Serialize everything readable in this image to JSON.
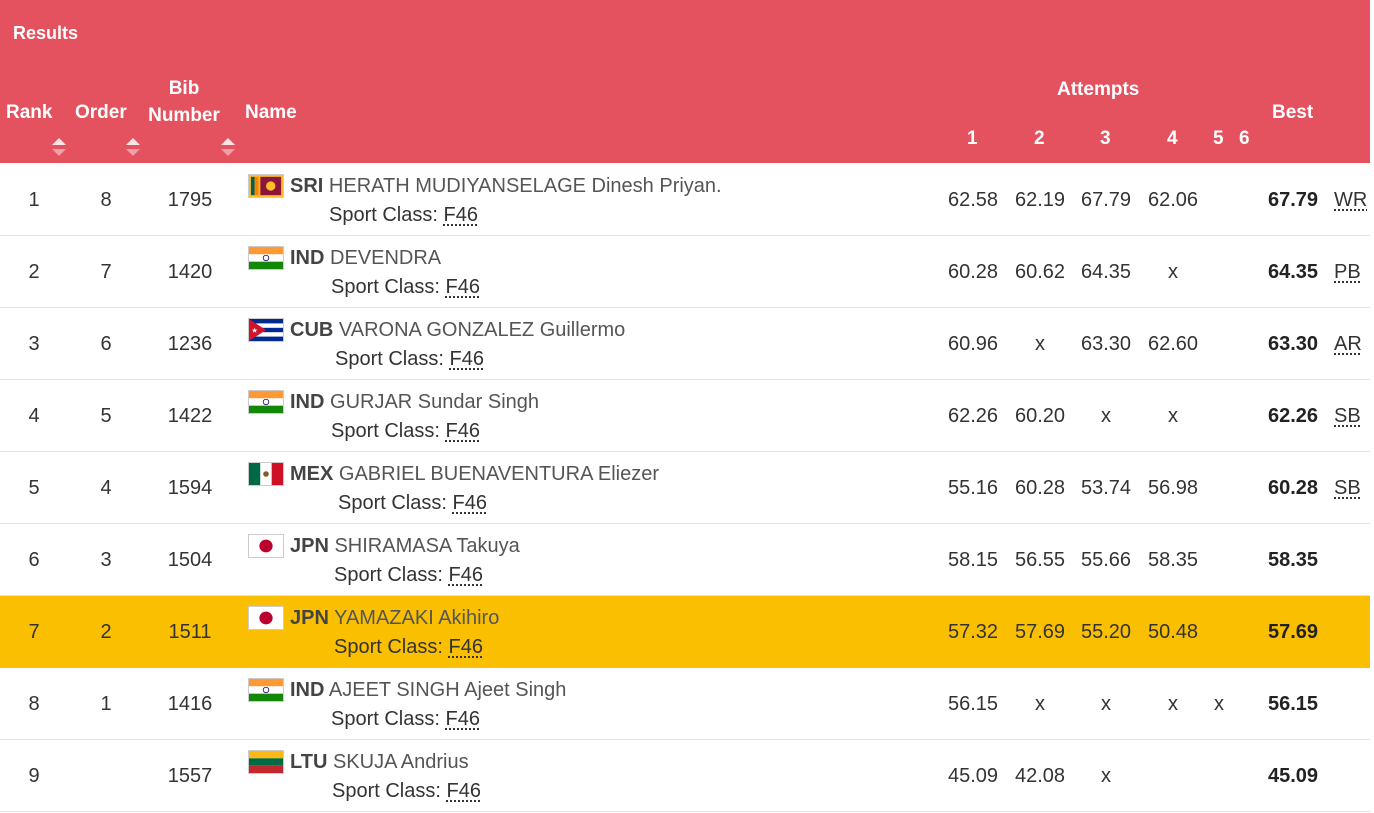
{
  "header": {
    "title": "Results",
    "rank": "Rank",
    "order": "Order",
    "bib": "Bib Number",
    "name": "Name",
    "attempts": "Attempts",
    "attempt_numbers": [
      "1",
      "2",
      "3",
      "4",
      "5",
      "6"
    ],
    "best": "Best"
  },
  "colors": {
    "header_bg": "#e5525f",
    "highlight": "#f9bf00"
  },
  "sport_class_label": "Sport Class:",
  "rows": [
    {
      "rank": "1",
      "order": "8",
      "bib": "1795",
      "flag": "sri-lanka-flag",
      "noc": "SRI",
      "name": "HERATH MUDIYANSELAGE Dinesh Priyan.",
      "sport_class": "F46",
      "attempts": [
        "62.58",
        "62.19",
        "67.79",
        "62.06",
        ""
      ],
      "best": "67.79",
      "record": "WR"
    },
    {
      "rank": "2",
      "order": "7",
      "bib": "1420",
      "flag": "india-flag",
      "noc": "IND",
      "name": "DEVENDRA",
      "sport_class": "F46",
      "attempts": [
        "60.28",
        "60.62",
        "64.35",
        "x",
        ""
      ],
      "best": "64.35",
      "record": "PB"
    },
    {
      "rank": "3",
      "order": "6",
      "bib": "1236",
      "flag": "cuba-flag",
      "noc": "CUB",
      "name": "VARONA GONZALEZ Guillermo",
      "sport_class": "F46",
      "attempts": [
        "60.96",
        "x",
        "63.30",
        "62.60",
        ""
      ],
      "best": "63.30",
      "record": "AR"
    },
    {
      "rank": "4",
      "order": "5",
      "bib": "1422",
      "flag": "india-flag",
      "noc": "IND",
      "name": "GURJAR Sundar Singh",
      "sport_class": "F46",
      "attempts": [
        "62.26",
        "60.20",
        "x",
        "x",
        ""
      ],
      "best": "62.26",
      "record": "SB"
    },
    {
      "rank": "5",
      "order": "4",
      "bib": "1594",
      "flag": "mexico-flag",
      "noc": "MEX",
      "name": "GABRIEL BUENAVENTURA Eliezer",
      "sport_class": "F46",
      "attempts": [
        "55.16",
        "60.28",
        "53.74",
        "56.98",
        ""
      ],
      "best": "60.28",
      "record": "SB"
    },
    {
      "rank": "6",
      "order": "3",
      "bib": "1504",
      "flag": "japan-flag",
      "noc": "JPN",
      "name": "SHIRAMASA Takuya",
      "sport_class": "F46",
      "attempts": [
        "58.15",
        "56.55",
        "55.66",
        "58.35",
        ""
      ],
      "best": "58.35",
      "record": ""
    },
    {
      "rank": "7",
      "order": "2",
      "bib": "1511",
      "flag": "japan-flag",
      "noc": "JPN",
      "name": "YAMAZAKI Akihiro",
      "sport_class": "F46",
      "attempts": [
        "57.32",
        "57.69",
        "55.20",
        "50.48",
        ""
      ],
      "best": "57.69",
      "record": "",
      "highlighted": true
    },
    {
      "rank": "8",
      "order": "1",
      "bib": "1416",
      "flag": "india-flag",
      "noc": "IND",
      "name": "AJEET SINGH Ajeet Singh",
      "sport_class": "F46",
      "attempts": [
        "56.15",
        "x",
        "x",
        "x",
        "x"
      ],
      "best": "56.15",
      "record": ""
    },
    {
      "rank": "9",
      "order": "",
      "bib": "1557",
      "flag": "lithuania-flag",
      "noc": "LTU",
      "name": "SKUJA Andrius",
      "sport_class": "F46",
      "attempts": [
        "45.09",
        "42.08",
        "x",
        "",
        ""
      ],
      "best": "45.09",
      "record": ""
    }
  ]
}
